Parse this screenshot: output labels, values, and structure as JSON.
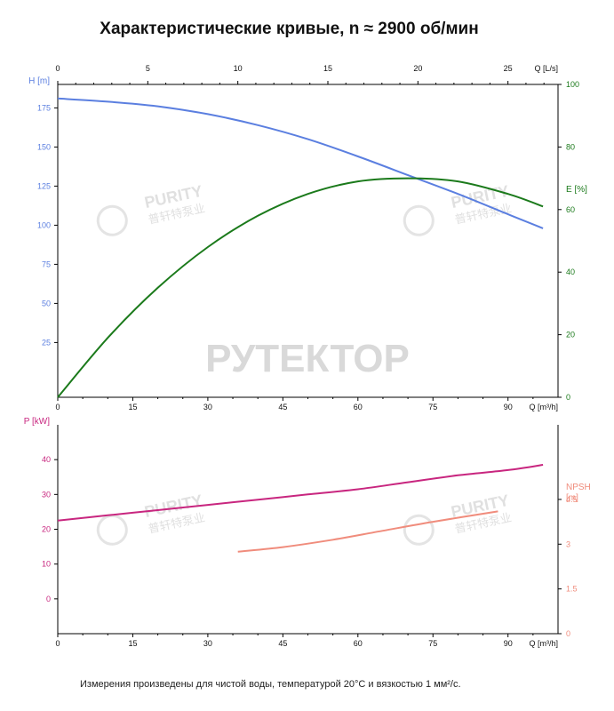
{
  "title": "Характеристические кривые, n ≈ 2900 об/мин",
  "footnote": "Измерения произведены для чистой воды, температурой 20°C и вязкостью 1 мм²/с.",
  "watermarks": {
    "brand_main": "РУТЕКТОР",
    "brand_small": "PURITY",
    "brand_cn": "普轩特泵业"
  },
  "colors": {
    "head": "#5b7fe0",
    "efficiency": "#1b7a1b",
    "power": "#c8267f",
    "npsh": "#f08c7c",
    "axis": "#000000",
    "tick_top": "#333333"
  },
  "chart_data": [
    {
      "type": "line",
      "x_axis": {
        "label": "Q [m³/h]",
        "range": [
          0,
          100
        ],
        "ticks": [
          0,
          15,
          30,
          45,
          60,
          75,
          90
        ]
      },
      "x_axis_top": {
        "label": "Q [L/s]",
        "range": [
          0,
          27.78
        ],
        "ticks": [
          0,
          5,
          10,
          15,
          20,
          25
        ]
      },
      "y_axis_left": {
        "label": "H [m]",
        "range": [
          -10,
          190
        ],
        "ticks": [
          25,
          50,
          75,
          100,
          125,
          150,
          175
        ]
      },
      "y_axis_right": {
        "label": "E [%]",
        "range": [
          0,
          100
        ],
        "ticks": [
          0,
          20,
          40,
          60,
          80,
          100
        ]
      },
      "series": [
        {
          "key": "head",
          "axis": "left",
          "x": [
            0,
            10,
            20,
            30,
            40,
            50,
            60,
            70,
            80,
            90,
            97
          ],
          "y": [
            181,
            179,
            176,
            171,
            164,
            155,
            144,
            132,
            120,
            107,
            98
          ]
        },
        {
          "key": "efficiency",
          "axis": "right",
          "x": [
            0,
            10,
            20,
            30,
            40,
            50,
            60,
            70,
            80,
            90,
            97
          ],
          "y": [
            0,
            19,
            35,
            48,
            58,
            65,
            69,
            70,
            69,
            65,
            61
          ]
        }
      ]
    },
    {
      "type": "line",
      "x_axis": {
        "label": "Q [m³/h]",
        "range": [
          0,
          100
        ],
        "ticks": [
          0,
          15,
          30,
          45,
          60,
          75,
          90
        ]
      },
      "y_axis_left": {
        "label": "P [kW]",
        "range": [
          -10,
          50
        ],
        "ticks": [
          0,
          10,
          20,
          30,
          40
        ]
      },
      "y_axis_right": {
        "label": "NPSH\n[m]",
        "range": [
          0,
          7
        ],
        "ticks": [
          0,
          1.5,
          3,
          4.5
        ],
        "tick_labels": [
          "0",
          "1.5",
          "3",
          "4.5"
        ]
      },
      "series": [
        {
          "key": "power",
          "axis": "left",
          "x": [
            0,
            10,
            20,
            30,
            40,
            50,
            60,
            70,
            80,
            90,
            97
          ],
          "y": [
            22.5,
            24,
            25.5,
            27,
            28.5,
            30,
            31.5,
            33.5,
            35.5,
            37,
            38.5
          ]
        },
        {
          "key": "npsh",
          "axis": "right",
          "x": [
            36,
            45,
            55,
            65,
            75,
            88
          ],
          "y": [
            2.75,
            2.9,
            3.15,
            3.45,
            3.75,
            4.1
          ]
        }
      ]
    }
  ]
}
